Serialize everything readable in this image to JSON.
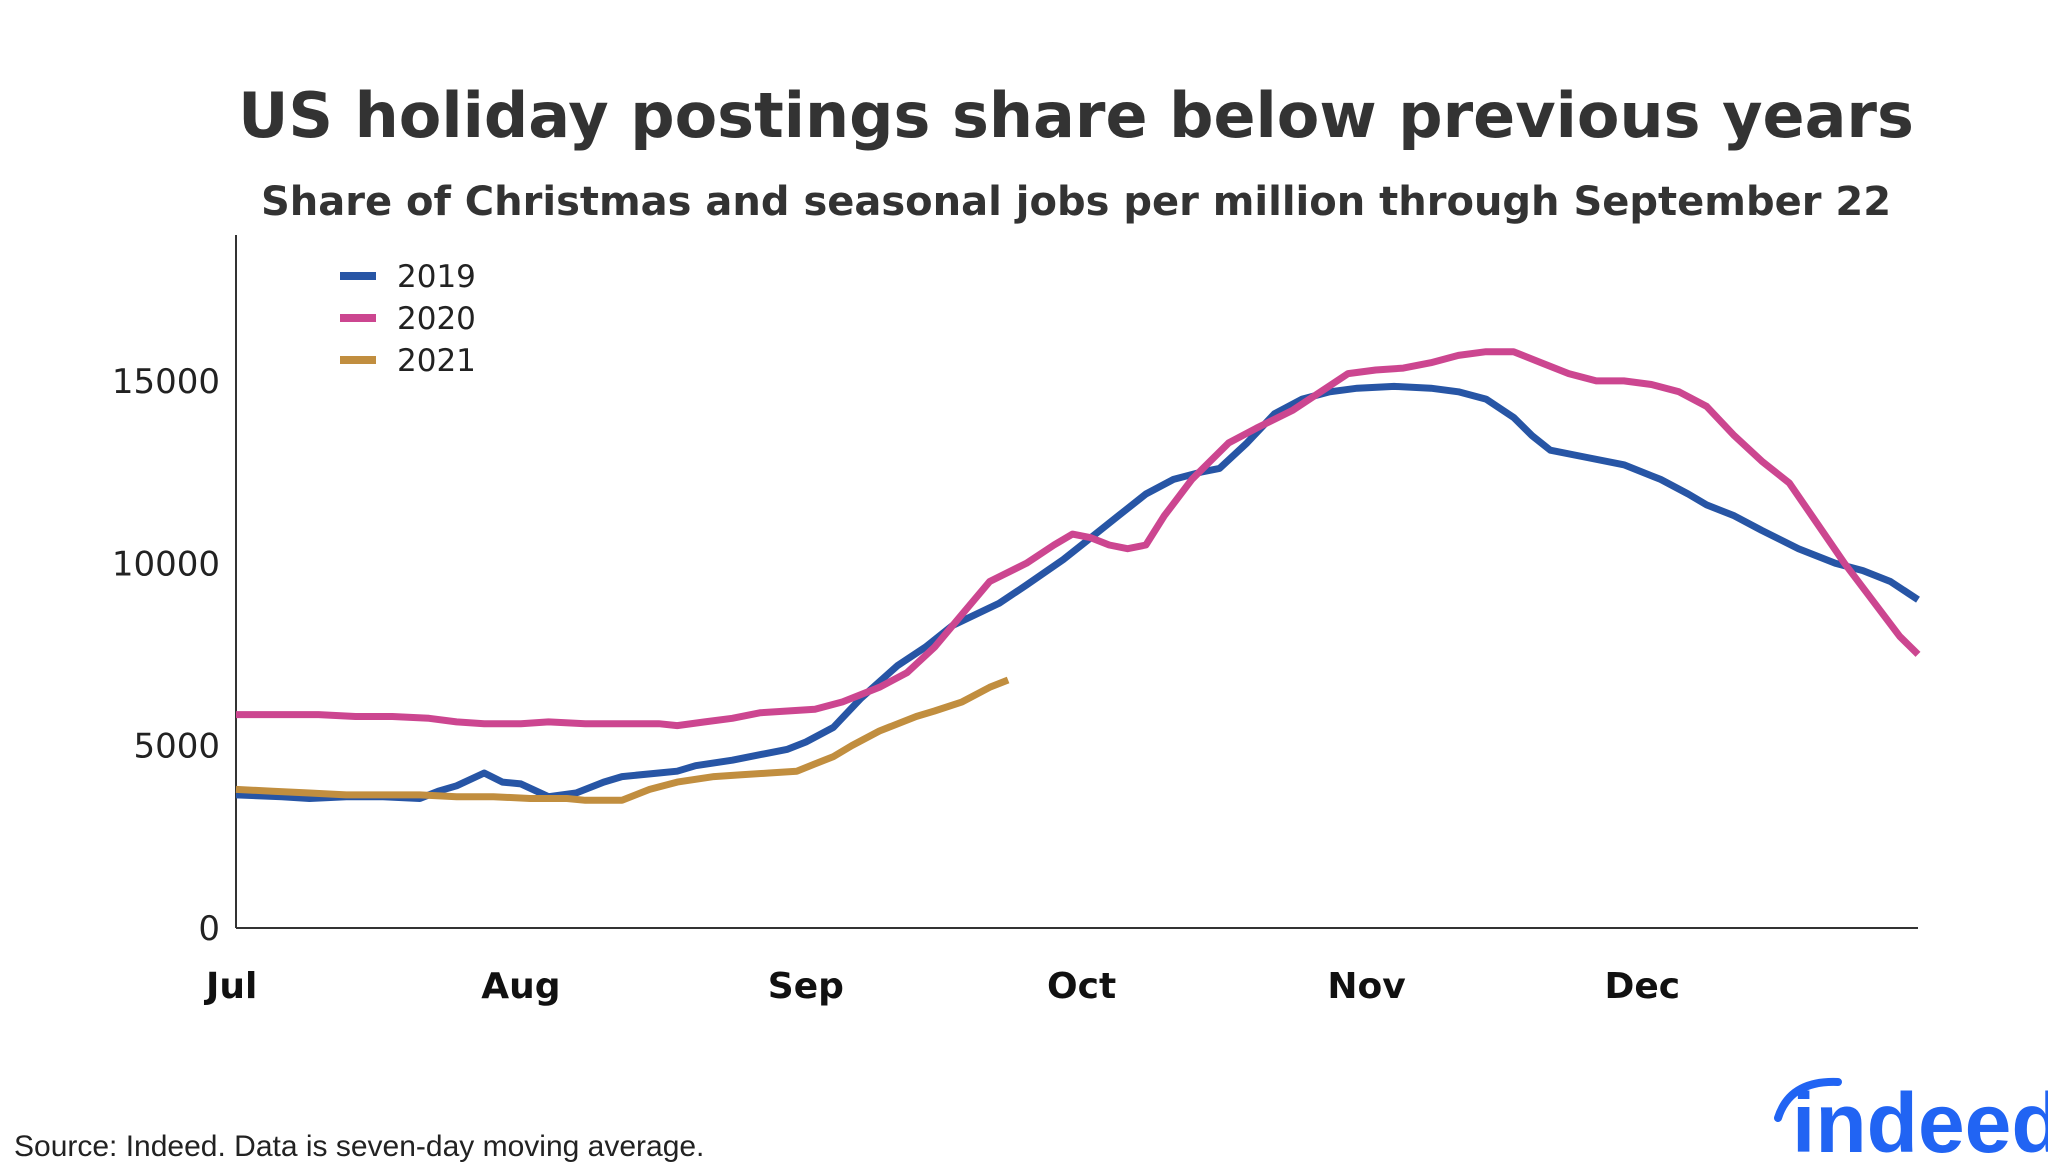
{
  "chart_data": {
    "type": "line",
    "title": "US holiday postings share below previous years",
    "subtitle": "Share of Christmas and seasonal jobs per million through September 22",
    "xlabel": "",
    "ylabel": "",
    "ylim": [
      0,
      19000
    ],
    "xlim": [
      0,
      183
    ],
    "grid": false,
    "legend_position": "top-left",
    "x_ticks": [
      {
        "label": "Jul",
        "day": 0
      },
      {
        "label": "Aug",
        "day": 31
      },
      {
        "label": "Sep",
        "day": 62
      },
      {
        "label": "Oct",
        "day": 92
      },
      {
        "label": "Nov",
        "day": 123
      },
      {
        "label": "Dec",
        "day": 153
      }
    ],
    "y_ticks": [
      0,
      5000,
      10000,
      15000
    ],
    "series": [
      {
        "name": "2019",
        "color": "#2755a5",
        "points": [
          [
            0,
            3650
          ],
          [
            5,
            3600
          ],
          [
            8,
            3550
          ],
          [
            12,
            3600
          ],
          [
            16,
            3600
          ],
          [
            20,
            3550
          ],
          [
            22,
            3750
          ],
          [
            24,
            3900
          ],
          [
            27,
            4250
          ],
          [
            29,
            4000
          ],
          [
            31,
            3950
          ],
          [
            34,
            3600
          ],
          [
            37,
            3700
          ],
          [
            40,
            4000
          ],
          [
            42,
            4150
          ],
          [
            46,
            4250
          ],
          [
            48,
            4300
          ],
          [
            50,
            4450
          ],
          [
            54,
            4600
          ],
          [
            58,
            4800
          ],
          [
            60,
            4900
          ],
          [
            62,
            5100
          ],
          [
            65,
            5500
          ],
          [
            68,
            6300
          ],
          [
            72,
            7200
          ],
          [
            75,
            7700
          ],
          [
            78,
            8300
          ],
          [
            83,
            8900
          ],
          [
            86,
            9400
          ],
          [
            90,
            10100
          ],
          [
            93,
            10700
          ],
          [
            96,
            11300
          ],
          [
            99,
            11900
          ],
          [
            102,
            12300
          ],
          [
            105,
            12500
          ],
          [
            107,
            12600
          ],
          [
            110,
            13300
          ],
          [
            113,
            14100
          ],
          [
            116,
            14500
          ],
          [
            119,
            14700
          ],
          [
            122,
            14800
          ],
          [
            126,
            14850
          ],
          [
            130,
            14800
          ],
          [
            133,
            14700
          ],
          [
            136,
            14500
          ],
          [
            139,
            14000
          ],
          [
            141,
            13500
          ],
          [
            143,
            13100
          ],
          [
            147,
            12900
          ],
          [
            151,
            12700
          ],
          [
            155,
            12300
          ],
          [
            158,
            11900
          ],
          [
            160,
            11600
          ],
          [
            163,
            11300
          ],
          [
            166,
            10900
          ],
          [
            170,
            10400
          ],
          [
            174,
            10000
          ],
          [
            177,
            9800
          ],
          [
            180,
            9500
          ],
          [
            183,
            9000
          ]
        ]
      },
      {
        "name": "2020",
        "color": "#cc4690",
        "points": [
          [
            0,
            5850
          ],
          [
            5,
            5850
          ],
          [
            9,
            5850
          ],
          [
            13,
            5800
          ],
          [
            17,
            5800
          ],
          [
            21,
            5750
          ],
          [
            24,
            5650
          ],
          [
            27,
            5600
          ],
          [
            31,
            5600
          ],
          [
            34,
            5650
          ],
          [
            38,
            5600
          ],
          [
            42,
            5600
          ],
          [
            46,
            5600
          ],
          [
            48,
            5550
          ],
          [
            51,
            5650
          ],
          [
            54,
            5750
          ],
          [
            57,
            5900
          ],
          [
            60,
            5950
          ],
          [
            63,
            6000
          ],
          [
            66,
            6200
          ],
          [
            70,
            6600
          ],
          [
            73,
            7000
          ],
          [
            76,
            7700
          ],
          [
            79,
            8600
          ],
          [
            82,
            9500
          ],
          [
            86,
            10000
          ],
          [
            89,
            10500
          ],
          [
            91,
            10800
          ],
          [
            93,
            10700
          ],
          [
            95,
            10500
          ],
          [
            97,
            10400
          ],
          [
            99,
            10500
          ],
          [
            101,
            11300
          ],
          [
            104,
            12300
          ],
          [
            108,
            13300
          ],
          [
            111,
            13700
          ],
          [
            115,
            14200
          ],
          [
            118,
            14700
          ],
          [
            121,
            15200
          ],
          [
            124,
            15300
          ],
          [
            127,
            15350
          ],
          [
            130,
            15500
          ],
          [
            133,
            15700
          ],
          [
            136,
            15800
          ],
          [
            139,
            15800
          ],
          [
            142,
            15500
          ],
          [
            145,
            15200
          ],
          [
            148,
            15000
          ],
          [
            151,
            15000
          ],
          [
            154,
            14900
          ],
          [
            157,
            14700
          ],
          [
            160,
            14300
          ],
          [
            163,
            13500
          ],
          [
            166,
            12800
          ],
          [
            169,
            12200
          ],
          [
            172,
            11100
          ],
          [
            175,
            10000
          ],
          [
            178,
            9000
          ],
          [
            181,
            8000
          ],
          [
            183,
            7500
          ]
        ]
      },
      {
        "name": "2021",
        "color": "#c18e3f",
        "points": [
          [
            0,
            3800
          ],
          [
            4,
            3750
          ],
          [
            8,
            3700
          ],
          [
            12,
            3650
          ],
          [
            16,
            3650
          ],
          [
            20,
            3650
          ],
          [
            24,
            3600
          ],
          [
            28,
            3600
          ],
          [
            32,
            3550
          ],
          [
            36,
            3550
          ],
          [
            38,
            3500
          ],
          [
            40,
            3500
          ],
          [
            42,
            3500
          ],
          [
            45,
            3800
          ],
          [
            48,
            4000
          ],
          [
            52,
            4150
          ],
          [
            55,
            4200
          ],
          [
            58,
            4250
          ],
          [
            61,
            4300
          ],
          [
            63,
            4500
          ],
          [
            65,
            4700
          ],
          [
            67,
            5000
          ],
          [
            70,
            5400
          ],
          [
            74,
            5800
          ],
          [
            76,
            5950
          ],
          [
            79,
            6200
          ],
          [
            82,
            6600
          ],
          [
            84,
            6800
          ]
        ]
      }
    ]
  },
  "footer": {
    "source": "Source: Indeed. Data is seven-day moving average.",
    "logo_text": "indeed"
  },
  "colors": {
    "title": "#333333",
    "axis": "#333333",
    "logo": "#2164f3"
  }
}
